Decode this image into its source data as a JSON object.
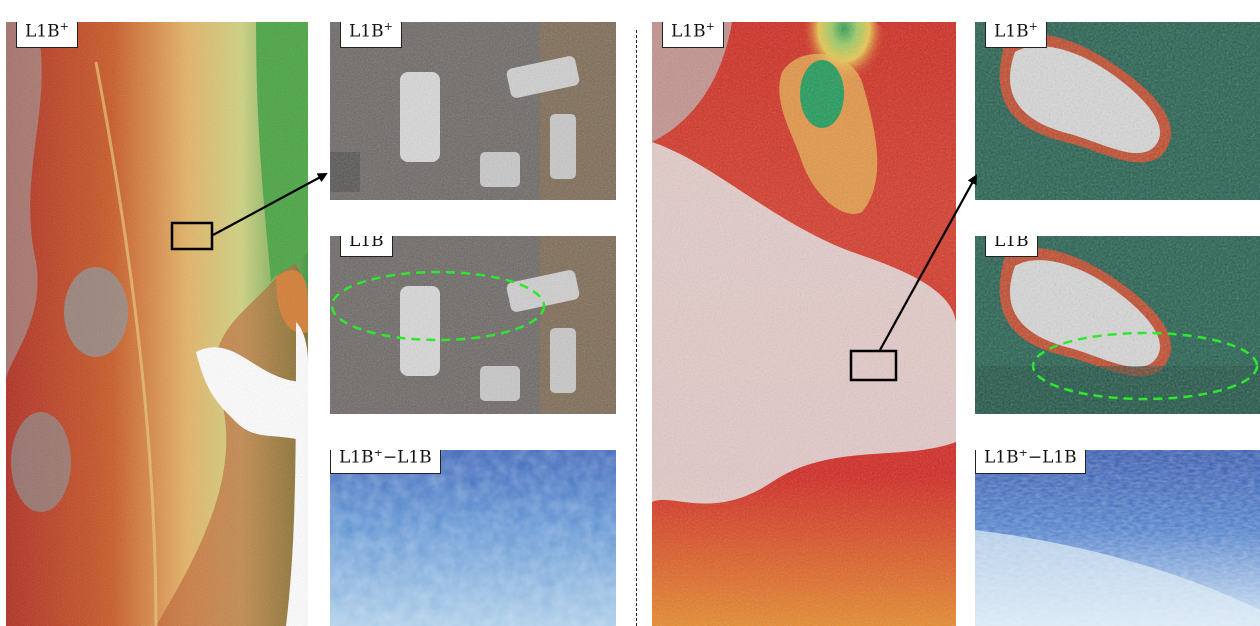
{
  "labels": {
    "l1b_plus": "L1B",
    "l1b": "L1B",
    "diff_prefix": "L1B",
    "diff_suffix": "−L1B",
    "sup": "+"
  },
  "panels": [
    {
      "id": "left-overview",
      "label_type": "l1b_plus"
    },
    {
      "id": "left-zoom-1",
      "label_type": "l1b_plus"
    },
    {
      "id": "left-zoom-2",
      "label_type": "l1b"
    },
    {
      "id": "left-zoom-3",
      "label_type": "diff"
    },
    {
      "id": "right-overview",
      "label_type": "l1b_plus"
    },
    {
      "id": "right-zoom-1",
      "label_type": "l1b_plus"
    },
    {
      "id": "right-zoom-2",
      "label_type": "l1b"
    },
    {
      "id": "right-zoom-3",
      "label_type": "diff"
    }
  ],
  "colors": {
    "terrain_green": "#3f9a3c",
    "terrain_yellow": "#e8c766",
    "terrain_red": "#c0241c",
    "hillshade_gray": "#6d6d6d",
    "sea_green": "#235c4c",
    "diff_blue": "#4a7ac6",
    "ellipse_green": "#2ee82e"
  }
}
